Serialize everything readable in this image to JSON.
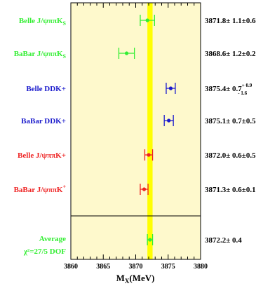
{
  "chart_data": {
    "type": "scatter",
    "xlabel": "M",
    "xlabel_sub": "X",
    "xlabel_unit": "(MeV)",
    "xlim": [
      3860,
      3880
    ],
    "xticks": [
      "3860",
      "3865",
      "3870",
      "3875",
      "3880"
    ],
    "average_band": {
      "center": 3872.2,
      "halfwidth": 0.4,
      "color": "#ffff00"
    },
    "background_color": "#fef9cc",
    "measurements": [
      {
        "label": "Belle J/ψππK",
        "label_sub": "S",
        "label_sup": "",
        "color": "#33ee33",
        "value": 3871.8,
        "err_minus": 1.1,
        "err_plus": 1.1,
        "result": "3871.8± 1.1±0.6"
      },
      {
        "label": "BaBar J/ψππK",
        "label_sub": "S",
        "label_sup": "",
        "color": "#33ee33",
        "value": 3868.6,
        "err_minus": 1.2,
        "err_plus": 1.2,
        "result": "3868.6± 1.2±0.2"
      },
      {
        "label": "Belle DDK+",
        "label_sub": "",
        "label_sup": "",
        "color": "#1a1acc",
        "value": 3875.4,
        "err_minus": 0.7,
        "err_plus": 0.7,
        "result": "3875.4± 0.7",
        "result_sup": "+ 0.9",
        "result_sub": "- 1.6"
      },
      {
        "label": "BaBar DDK+",
        "label_sub": "",
        "label_sup": "",
        "color": "#1a1acc",
        "value": 3875.1,
        "err_minus": 0.7,
        "err_plus": 0.7,
        "result": "3875.1± 0.7±0.5"
      },
      {
        "label": "Belle  J/ψππK+",
        "label_sub": "",
        "label_sup": "",
        "color": "#ee2222",
        "value": 3872.0,
        "err_minus": 0.6,
        "err_plus": 0.6,
        "result": "3872.0± 0.6±0.5"
      },
      {
        "label": "BaBar J/ψππK",
        "label_sub": "",
        "label_sup": "+",
        "color": "#ee2222",
        "value": 3871.3,
        "err_minus": 0.6,
        "err_plus": 0.6,
        "result": "3871.3± 0.6±0.1"
      }
    ],
    "average": {
      "label": "Average",
      "chi2": "χ²=27/5 DOF",
      "color": "#33ee33",
      "value": 3872.2,
      "err_minus": 0.4,
      "err_plus": 0.4,
      "result": "3872.2± 0.4"
    }
  }
}
